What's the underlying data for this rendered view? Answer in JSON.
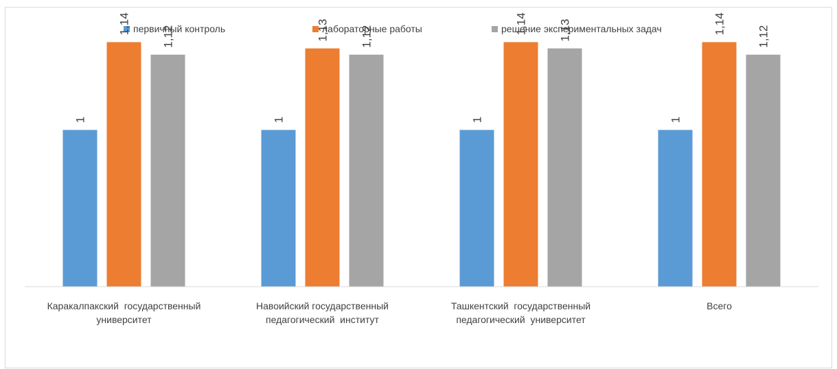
{
  "chart_data": {
    "type": "bar",
    "categories": [
      [
        "Каракалпакский  государственный",
        "университет"
      ],
      [
        "Навоийский государственный",
        "педагогический  институт"
      ],
      [
        "Ташкентский  государственный",
        "педагогический  университет"
      ],
      [
        "Всего"
      ]
    ],
    "series": [
      {
        "name": "первичный  контроль",
        "color": "#5b9bd5",
        "values": [
          1,
          1,
          1,
          1
        ],
        "labels": [
          "1",
          "1",
          "1",
          "1"
        ]
      },
      {
        "name": "лабораторные работы",
        "color": "#ed7d31",
        "values": [
          1.14,
          1.13,
          1.14,
          1.14
        ],
        "labels": [
          "1,14",
          "1,13",
          "1,14",
          "1,14"
        ]
      },
      {
        "name": "решение экспериментальных задач",
        "color": "#a5a5a5",
        "values": [
          1.12,
          1.12,
          1.13,
          1.12
        ],
        "labels": [
          "1,12",
          "1,12",
          "1,13",
          "1,12"
        ]
      }
    ],
    "ylim": [
      0.75,
      1.17
    ],
    "legend_position": "top",
    "grid": false
  }
}
